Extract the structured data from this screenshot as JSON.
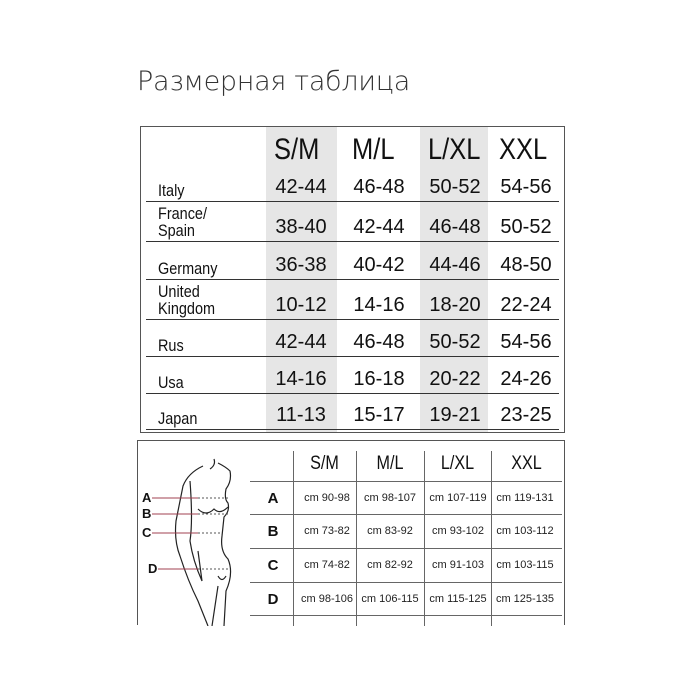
{
  "title": "Размерная таблица",
  "country_table": {
    "sizes": [
      "S/M",
      "M/L",
      "L/XL",
      "XXL"
    ],
    "rows": [
      {
        "country": "Italy",
        "values": [
          "42-44",
          "46-48",
          "50-52",
          "54-56"
        ]
      },
      {
        "country": "France/\nSpain",
        "values": [
          "38-40",
          "42-44",
          "46-48",
          "50-52"
        ]
      },
      {
        "country": "Germany",
        "values": [
          "36-38",
          "40-42",
          "44-46",
          "48-50"
        ]
      },
      {
        "country": "United\nKingdom",
        "values": [
          "10-12",
          "14-16",
          "18-20",
          "22-24"
        ]
      },
      {
        "country": "Rus",
        "values": [
          "42-44",
          "46-48",
          "50-52",
          "54-56"
        ]
      },
      {
        "country": "Usa",
        "values": [
          "14-16",
          "16-18",
          "20-22",
          "24-26"
        ]
      },
      {
        "country": "Japan",
        "values": [
          "11-13",
          "15-17",
          "19-21",
          "23-25"
        ]
      }
    ],
    "shade_color": "#e6e6e6"
  },
  "measure_table": {
    "sizes": [
      "S/M",
      "M/L",
      "L/XL",
      "XXL"
    ],
    "rows": [
      {
        "label": "A",
        "values": [
          "cm 90-98",
          "cm 98-107",
          "cm 107-119",
          "cm 119-131"
        ]
      },
      {
        "label": "B",
        "values": [
          "cm 73-82",
          "cm 83-92",
          "cm 93-102",
          "cm 103-112"
        ]
      },
      {
        "label": "C",
        "values": [
          "cm 74-82",
          "cm 82-92",
          "cm 91-103",
          "cm 103-115"
        ]
      },
      {
        "label": "D",
        "values": [
          "cm 98-106",
          "cm 106-115",
          "cm 115-125",
          "cm 125-135"
        ]
      }
    ],
    "figure_labels": [
      "A",
      "B",
      "C",
      "D"
    ],
    "marker_color": "#a04050"
  }
}
